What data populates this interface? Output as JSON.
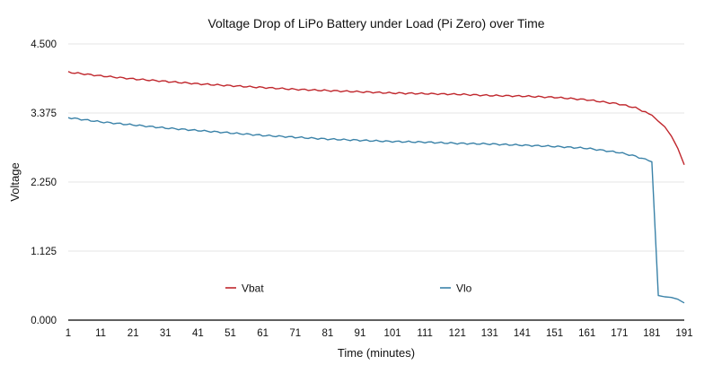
{
  "chart_data": {
    "type": "line",
    "title": "Voltage Drop of LiPo Battery under Load (Pi Zero) over Time",
    "xlabel": "Time (minutes)",
    "ylabel": "Voltage",
    "ylim": [
      0,
      4.5
    ],
    "yticks": [
      "4.500",
      "3.375",
      "2.250",
      "1.125",
      "0.000"
    ],
    "xlim": [
      1,
      191
    ],
    "xticks": [
      "1",
      "11",
      "21",
      "31",
      "41",
      "51",
      "61",
      "71",
      "81",
      "91",
      "101",
      "111",
      "121",
      "131",
      "141",
      "151",
      "161",
      "171",
      "181",
      "191"
    ],
    "grid": "horizontal",
    "legend_position": "bottom-inside",
    "x": [
      1,
      11,
      21,
      31,
      41,
      51,
      61,
      71,
      81,
      91,
      101,
      111,
      121,
      131,
      141,
      151,
      161,
      171,
      176,
      181,
      183,
      185,
      187,
      189,
      191
    ],
    "series": [
      {
        "name": "Vbat",
        "color": "#c0272d",
        "values": [
          4.04,
          3.98,
          3.93,
          3.89,
          3.85,
          3.82,
          3.79,
          3.76,
          3.74,
          3.72,
          3.7,
          3.69,
          3.68,
          3.66,
          3.65,
          3.63,
          3.59,
          3.52,
          3.46,
          3.34,
          3.24,
          3.15,
          3.0,
          2.8,
          2.53
        ]
      },
      {
        "name": "Vlo",
        "color": "#3a82a8",
        "values": [
          3.3,
          3.23,
          3.18,
          3.13,
          3.09,
          3.05,
          3.01,
          2.98,
          2.95,
          2.93,
          2.91,
          2.9,
          2.88,
          2.87,
          2.85,
          2.83,
          2.8,
          2.73,
          2.67,
          2.58,
          0.4,
          0.38,
          0.37,
          0.34,
          0.28
        ]
      }
    ]
  }
}
